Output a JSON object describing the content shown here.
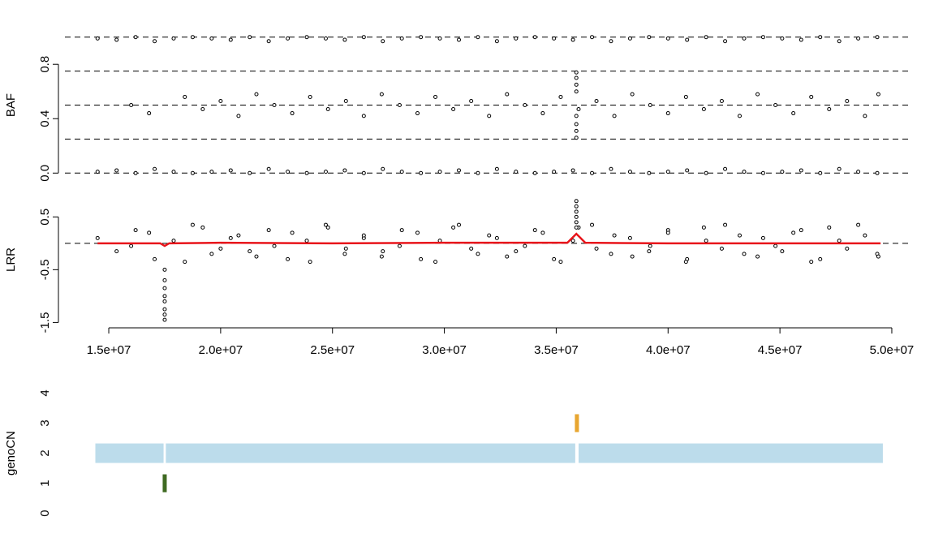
{
  "chart_data": [
    {
      "type": "scatter",
      "ylabel": "BAF",
      "xlim": [
        13040000,
        50400000
      ],
      "ylim": [
        -0.04,
        1.04
      ],
      "yticks": [
        {
          "value": 0,
          "label": "0.0"
        },
        {
          "value": 0.4,
          "label": "0.4"
        },
        {
          "value": 0.8,
          "label": "0.8"
        }
      ],
      "hlines": [
        0,
        0.25,
        0.5,
        0.75,
        1
      ],
      "series": [
        {
          "x": [
            14500000,
            15350000,
            16200000,
            17050000,
            17900000,
            18750000,
            19600000,
            20450000,
            21300000,
            22150000,
            23000000,
            23850000,
            24700000,
            25550000,
            26400000,
            27250000,
            28100000,
            28950000,
            29800000,
            30650000,
            31500000,
            32350000,
            33200000,
            34050000,
            34900000,
            35750000,
            36600000,
            37450000,
            38300000,
            39150000,
            40000000,
            40850000,
            41700000,
            42550000,
            43400000,
            44250000,
            45100000,
            45950000,
            46800000,
            47650000,
            48500000,
            49350000
          ],
          "values": [
            0.99,
            0.98,
            1.0,
            0.97,
            0.99,
            1.0,
            0.99,
            0.98,
            1.0,
            0.97,
            0.99,
            1.0,
            0.99,
            0.98,
            1.0,
            0.97,
            0.99,
            1.0,
            0.99,
            0.98,
            1.0,
            0.97,
            0.99,
            1.0,
            0.99,
            0.98,
            1.0,
            0.97,
            0.99,
            1.0,
            0.99,
            0.98,
            1.0,
            0.97,
            0.99,
            1.0,
            0.99,
            0.98,
            1.0,
            0.97,
            0.99,
            1.0
          ]
        },
        {
          "x": [
            16000000,
            16800000,
            18400000,
            19200000,
            20000000,
            20800000,
            21600000,
            22400000,
            23200000,
            24000000,
            24800000,
            25600000,
            26400000,
            27200000,
            28000000,
            28800000,
            29600000,
            30400000,
            31200000,
            32000000,
            32800000,
            33600000,
            34400000,
            35200000,
            36000000,
            36800000,
            37600000,
            38400000,
            39200000,
            40000000,
            40800000,
            41600000,
            42400000,
            43200000,
            44000000,
            44800000,
            45600000,
            46400000,
            47200000,
            48000000,
            48800000,
            49400000
          ],
          "values": [
            0.5,
            0.44,
            0.56,
            0.47,
            0.53,
            0.42,
            0.58,
            0.5,
            0.44,
            0.56,
            0.47,
            0.53,
            0.42,
            0.58,
            0.5,
            0.44,
            0.56,
            0.47,
            0.53,
            0.42,
            0.58,
            0.5,
            0.44,
            0.56,
            0.47,
            0.53,
            0.42,
            0.58,
            0.5,
            0.44,
            0.56,
            0.47,
            0.53,
            0.42,
            0.58,
            0.5,
            0.44,
            0.56,
            0.47,
            0.53,
            0.42,
            0.58
          ]
        },
        {
          "x": [
            35900000,
            35900000,
            35900000,
            35900000,
            35900000,
            35900000,
            35900000,
            35900000
          ],
          "values": [
            0.26,
            0.31,
            0.36,
            0.42,
            0.6,
            0.65,
            0.7,
            0.74
          ]
        },
        {
          "x": [
            14500000,
            15350000,
            16200000,
            17050000,
            17900000,
            18750000,
            19600000,
            20450000,
            21300000,
            22150000,
            23000000,
            23850000,
            24700000,
            25550000,
            26400000,
            27250000,
            28100000,
            28950000,
            29800000,
            30650000,
            31500000,
            32350000,
            33200000,
            34050000,
            34900000,
            35750000,
            36600000,
            37450000,
            38300000,
            39150000,
            40000000,
            40850000,
            41700000,
            42550000,
            43400000,
            44250000,
            45100000,
            45950000,
            46800000,
            47650000,
            48500000,
            49350000
          ],
          "values": [
            0.01,
            0.02,
            0.0,
            0.03,
            0.01,
            0.0,
            0.01,
            0.02,
            0.0,
            0.03,
            0.01,
            0.0,
            0.01,
            0.02,
            0.0,
            0.03,
            0.01,
            0.0,
            0.01,
            0.02,
            0.0,
            0.03,
            0.01,
            0.0,
            0.01,
            0.02,
            0.0,
            0.03,
            0.01,
            0.0,
            0.01,
            0.02,
            0.0,
            0.03,
            0.01,
            0.0,
            0.01,
            0.02,
            0.0,
            0.03,
            0.01,
            0.0
          ]
        }
      ]
    },
    {
      "type": "scatter",
      "ylabel": "LRR",
      "xlim": [
        13040000,
        50400000
      ],
      "ylim": [
        -1.54,
        0.92
      ],
      "yticks": [
        0.5,
        -0.5,
        -1.5
      ],
      "xticks": [
        {
          "value": 15000000,
          "label": "1.5e+07"
        },
        {
          "value": 20000000,
          "label": "2.0e+07"
        },
        {
          "value": 25000000,
          "label": "2.5e+07"
        },
        {
          "value": 30000000,
          "label": "3.0e+07"
        },
        {
          "value": 35000000,
          "label": "3.5e+07"
        },
        {
          "value": 40000000,
          "label": "4.0e+07"
        },
        {
          "value": 45000000,
          "label": "4.5e+07"
        },
        {
          "value": 50000000,
          "label": "5.0e+07"
        }
      ],
      "hlines": [
        0
      ],
      "series": [
        {
          "x": [
            14500000,
            15350000,
            16200000,
            17050000,
            17900000,
            18750000,
            19600000,
            20450000,
            21300000,
            22150000,
            23000000,
            23850000,
            24700000,
            25550000,
            26400000,
            27250000,
            28100000,
            28950000,
            29800000,
            30650000,
            31500000,
            32350000,
            33200000,
            34050000,
            34900000,
            35750000,
            36600000,
            37450000,
            38300000,
            39150000,
            40000000,
            40850000,
            41700000,
            42550000,
            43400000,
            44250000,
            45100000,
            45950000,
            46800000,
            47650000,
            48500000,
            49350000
          ],
          "values": [
            0.1,
            -0.15,
            0.25,
            -0.3,
            0.05,
            0.35,
            -0.2,
            0.1,
            -0.15,
            0.25,
            -0.3,
            0.05,
            0.35,
            -0.2,
            0.1,
            -0.15,
            0.25,
            -0.3,
            0.05,
            0.35,
            -0.2,
            0.1,
            -0.15,
            0.25,
            -0.3,
            0.05,
            0.35,
            -0.2,
            0.1,
            -0.15,
            0.25,
            -0.3,
            0.05,
            0.35,
            -0.2,
            0.1,
            -0.15,
            0.25,
            -0.3,
            0.05,
            0.35,
            -0.2
          ]
        },
        {
          "x": [
            16000000,
            16800000,
            18400000,
            19200000,
            20000000,
            20800000,
            21600000,
            22400000,
            23200000,
            24000000,
            24800000,
            25600000,
            26400000,
            27200000,
            28000000,
            28800000,
            29600000,
            30400000,
            31200000,
            32000000,
            32800000,
            33600000,
            34400000,
            35200000,
            36000000,
            36800000,
            37600000,
            38400000,
            39200000,
            40000000,
            40800000,
            41600000,
            42400000,
            43200000,
            44000000,
            44800000,
            45600000,
            46400000,
            47200000,
            48000000,
            48800000,
            49400000
          ],
          "values": [
            -0.05,
            0.2,
            -0.35,
            0.3,
            -0.1,
            0.15,
            -0.25,
            -0.05,
            0.2,
            -0.35,
            0.3,
            -0.1,
            0.15,
            -0.25,
            -0.05,
            0.2,
            -0.35,
            0.3,
            -0.1,
            0.15,
            -0.25,
            -0.05,
            0.2,
            -0.35,
            0.3,
            -0.1,
            0.15,
            -0.25,
            -0.05,
            0.2,
            -0.35,
            0.3,
            -0.1,
            0.15,
            -0.25,
            -0.05,
            0.2,
            -0.35,
            0.3,
            -0.1,
            0.15,
            -0.25
          ]
        },
        {
          "x": [
            17500000,
            17500000,
            17500000,
            17500000,
            17500000,
            17500000,
            17500000,
            17500000
          ],
          "values": [
            -0.5,
            -0.7,
            -0.85,
            -1.0,
            -1.1,
            -1.25,
            -1.35,
            -1.45
          ]
        },
        {
          "x": [
            35900000,
            35900000,
            35900000,
            35900000,
            35900000,
            35900000
          ],
          "values": [
            0.3,
            0.4,
            0.5,
            0.6,
            0.7,
            0.8
          ]
        }
      ],
      "line": {
        "color": "#e8151b",
        "x": [
          14500000,
          16500000,
          17300000,
          17500000,
          17700000,
          20000000,
          25000000,
          30000000,
          35500000,
          35900000,
          36300000,
          40000000,
          45000000,
          49500000
        ],
        "values": [
          0,
          0,
          0,
          -0.05,
          0,
          0.01,
          0,
          0.01,
          0.01,
          0.18,
          0.01,
          0,
          0,
          0
        ]
      }
    },
    {
      "type": "segment",
      "ylabel": "genoCN",
      "xlim": [
        13040000,
        50400000
      ],
      "ylim": [
        -0.2,
        4.2
      ],
      "yticks": [
        0,
        1,
        2,
        3,
        4
      ],
      "segments": [
        {
          "start": 14400000,
          "end": 17450000,
          "value": 2,
          "color": "#bcdceb"
        },
        {
          "start": 17550000,
          "end": 35850000,
          "value": 2,
          "color": "#bcdceb"
        },
        {
          "start": 36000000,
          "end": 49600000,
          "value": 2,
          "color": "#bcdceb"
        },
        {
          "start": 17450000,
          "end": 17550000,
          "value": 1,
          "color": "#3f6a22"
        },
        {
          "start": 35850000,
          "end": 36000000,
          "value": 3,
          "color": "#e8a630"
        }
      ]
    }
  ]
}
